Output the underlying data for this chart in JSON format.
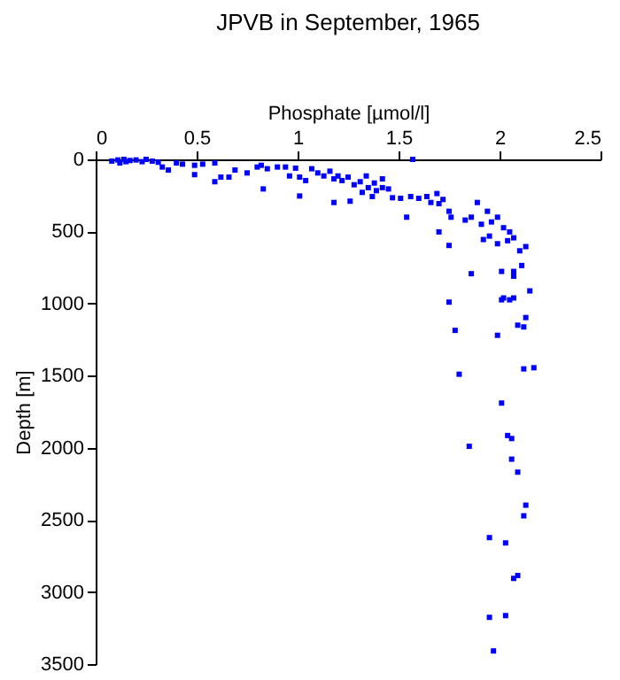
{
  "chart_data": {
    "type": "scatter",
    "title": "JPVB in September, 1965",
    "xlabel": "Phosphate [µmol/l]",
    "ylabel": "Depth [m]",
    "xlim": [
      0,
      2.5
    ],
    "xticks": [
      0,
      0.5,
      1,
      1.5,
      2,
      2.5
    ],
    "ylim": [
      3500,
      0
    ],
    "yticks": [
      0,
      500,
      1000,
      1500,
      2000,
      2500,
      3000,
      3500
    ],
    "grid": false,
    "marker": "square",
    "series": [
      {
        "color": "#0000ff",
        "x": [
          0.08,
          0.11,
          0.14,
          0.12,
          0.15,
          0.17,
          0.2,
          0.23,
          0.25,
          0.28,
          0.31,
          0.33,
          0.36,
          0.4,
          0.43,
          0.49,
          0.49,
          0.53,
          0.59,
          0.59,
          0.62,
          0.66,
          0.69,
          0.75,
          0.8,
          0.82,
          0.83,
          0.85,
          0.9,
          0.94,
          0.99,
          0.96,
          1.01,
          1.01,
          1.04,
          1.07,
          1.1,
          1.13,
          1.16,
          1.18,
          1.18,
          1.2,
          1.22,
          1.25,
          1.26,
          1.28,
          1.31,
          1.32,
          1.34,
          1.35,
          1.37,
          1.38,
          1.39,
          1.42,
          1.42,
          1.45,
          1.47,
          1.51,
          1.54,
          1.56,
          1.57,
          1.6,
          1.64,
          1.66,
          1.69,
          1.7,
          1.72,
          1.75,
          1.76,
          1.7,
          1.75,
          1.83,
          1.86,
          1.89,
          1.91,
          1.92,
          1.94,
          1.95,
          1.96,
          1.99,
          1.99,
          2.02,
          2.04,
          2.05,
          2.07,
          2.1,
          2.13,
          1.86,
          2.01,
          2.07,
          2.07,
          2.11,
          2.15,
          2.02,
          2.07,
          1.75,
          2.01,
          2.05,
          2.13,
          2.09,
          2.12,
          1.78,
          1.99,
          1.8,
          2.12,
          2.17,
          2.01,
          2.04,
          2.06,
          1.85,
          2.06,
          2.09,
          2.13,
          2.12,
          1.95,
          2.03,
          2.07,
          2.09,
          1.95,
          2.03,
          1.97
        ],
        "values": [
          12,
          4,
          0,
          25,
          16,
          8,
          4,
          16,
          0,
          12,
          20,
          53,
          74,
          25,
          33,
          41,
          106,
          33,
          25,
          155,
          123,
          123,
          74,
          94,
          53,
          41,
          205,
          65,
          53,
          53,
          61,
          115,
          123,
          254,
          147,
          65,
          94,
          115,
          82,
          135,
          299,
          115,
          147,
          123,
          290,
          176,
          155,
          229,
          115,
          196,
          258,
          164,
          217,
          196,
          135,
          205,
          266,
          270,
          401,
          258,
          0,
          270,
          258,
          299,
          237,
          307,
          278,
          360,
          401,
          503,
          597,
          421,
          401,
          299,
          450,
          556,
          360,
          532,
          434,
          401,
          585,
          474,
          564,
          503,
          544,
          634,
          605,
          793,
          777,
          777,
          810,
          736,
          912,
          961,
          961,
          990,
          974,
          974,
          1097,
          1150,
          1162,
          1186,
          1220,
          1490,
          1453,
          1445,
          1690,
          1915,
          1936,
          1990,
          2079,
          2169,
          2398,
          2472,
          2623,
          2660,
          2906,
          2886,
          3176,
          3164,
          3409
        ]
      }
    ]
  }
}
